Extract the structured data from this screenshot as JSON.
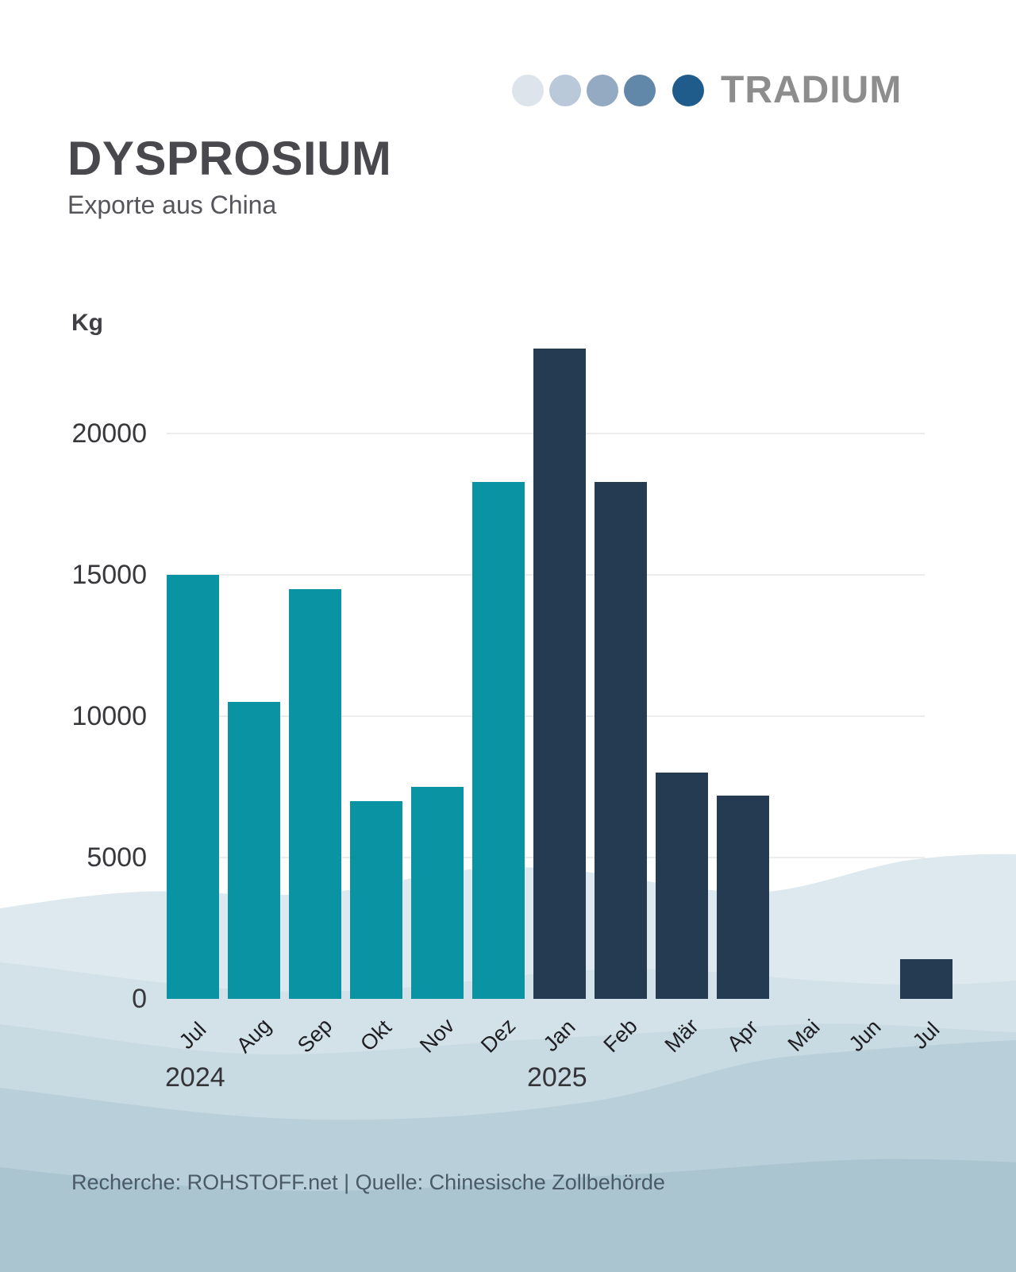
{
  "logo": {
    "brand": "TRADIUM",
    "dot_colors": [
      "#dde4eb",
      "#b9c9d9",
      "#93aac2",
      "#6187a9",
      "#1f5c8c"
    ]
  },
  "header": {
    "title": "DYSPROSIUM",
    "subtitle": "Exporte aus China"
  },
  "chart_data": {
    "type": "bar",
    "unit_label": "Kg",
    "categories": [
      "Jul",
      "Aug",
      "Sep",
      "Okt",
      "Nov",
      "Dez",
      "Jan",
      "Feb",
      "Mär",
      "Apr",
      "Mai",
      "Jun",
      "Jul"
    ],
    "values": [
      15000,
      10500,
      14500,
      7000,
      7500,
      18300,
      23000,
      18300,
      8000,
      7200,
      0,
      0,
      1400
    ],
    "year_groups": [
      {
        "label": "2024",
        "months": 6,
        "color": "#0a93a2"
      },
      {
        "label": "2025",
        "months": 7,
        "color": "#243b51"
      }
    ],
    "yticks": [
      0,
      5000,
      10000,
      15000,
      20000
    ],
    "ylim": [
      0,
      23600
    ],
    "grid": true,
    "gridline_color": "#ececec"
  },
  "footer": {
    "source_line": "Recherche: ROHSTOFF.net | Quelle: Chinesische Zollbehörde"
  },
  "background": {
    "wave_colors": [
      "#dde9ee",
      "#d3e2e8",
      "#c8dae2",
      "#b9cfd9",
      "#aac4d0"
    ]
  }
}
